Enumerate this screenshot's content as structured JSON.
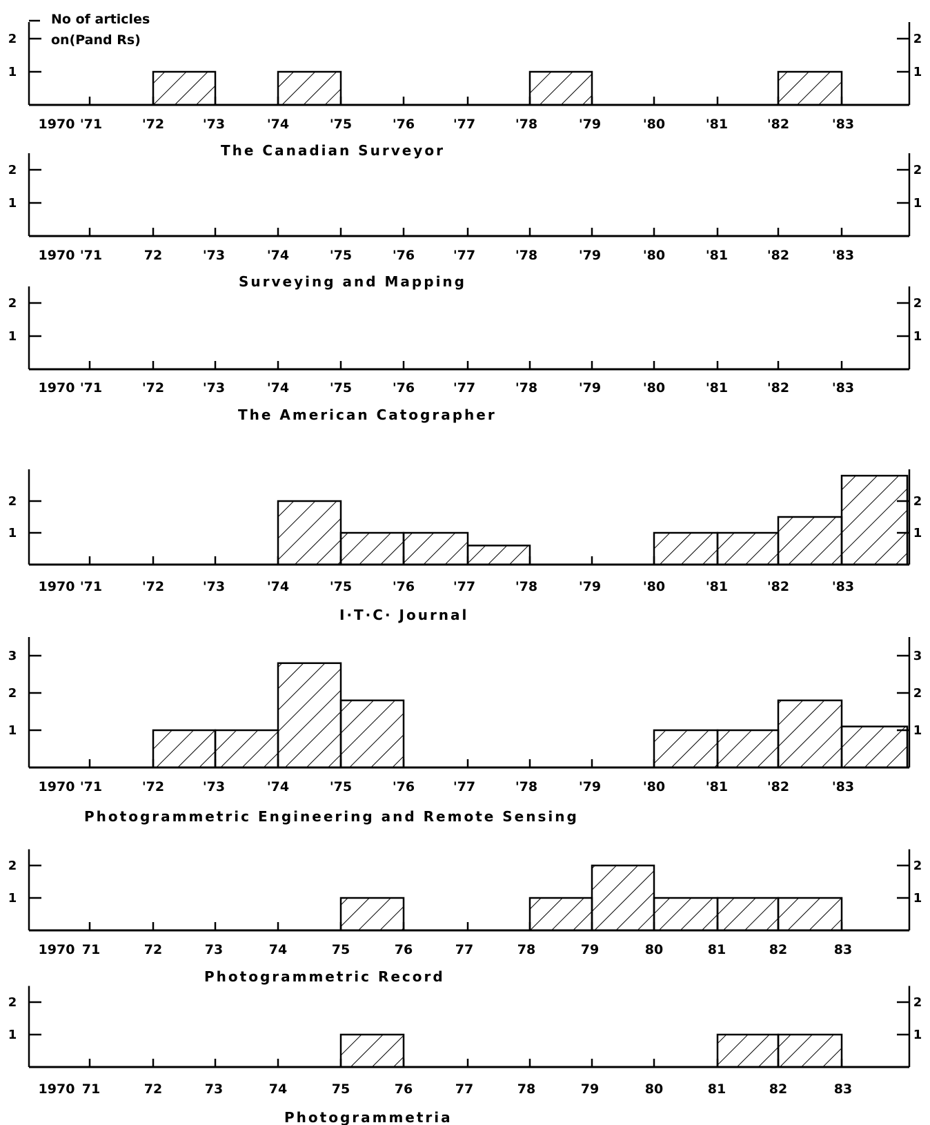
{
  "chart_data": [
    {
      "type": "bar",
      "title": "The Canadian Surveyor",
      "ylabel": "No of articles on(Pand Rs)",
      "categories": [
        "1970",
        "'71",
        "'72",
        "'73",
        "'74",
        "'75",
        "'76",
        "'77",
        "'78",
        "'79",
        "'80",
        "'81",
        "'82",
        "'83"
      ],
      "values": [
        0,
        0,
        1,
        0,
        1,
        0,
        0,
        0,
        1,
        0,
        0,
        0,
        1,
        0
      ],
      "yticks": [
        "1",
        "2"
      ],
      "ylim": [
        0,
        2.5
      ],
      "fill": "diagonal hatch"
    },
    {
      "type": "bar",
      "title": "Surveying and Mapping",
      "categories": [
        "1970",
        "'71",
        "72",
        "'73",
        "'74",
        "'75",
        "'76",
        "'77",
        "'78",
        "'79",
        "'80",
        "'81",
        "'82",
        "'83"
      ],
      "values": [
        0,
        0,
        0,
        0,
        0,
        0,
        0,
        0,
        0,
        0,
        0,
        0,
        0,
        0
      ],
      "yticks": [
        "1",
        "2"
      ],
      "ylim": [
        0,
        2.5
      ],
      "fill": "diagonal hatch"
    },
    {
      "type": "bar",
      "title": "The American Catographer",
      "categories": [
        "1970",
        "'71",
        "'72",
        "'73",
        "'74",
        "'75",
        "'76",
        "'77",
        "'78",
        "'79",
        "'80",
        "'81",
        "'82",
        "'83"
      ],
      "values": [
        0,
        0,
        0,
        0,
        0,
        0,
        0,
        0,
        0,
        0,
        0,
        0,
        0,
        0
      ],
      "yticks": [
        "1",
        "2"
      ],
      "ylim": [
        0,
        2.5
      ],
      "fill": "diagonal hatch"
    },
    {
      "type": "bar",
      "title": "I·T·C· Journal",
      "categories": [
        "1970",
        "'71",
        "'72",
        "'73",
        "'74",
        "'75",
        "'76",
        "'77",
        "'78",
        "'79",
        "'80",
        "'81",
        "'82",
        "'83"
      ],
      "values": [
        0,
        0,
        0,
        0,
        2,
        1,
        1,
        0.6,
        0,
        0,
        1,
        1,
        1.5,
        2.8
      ],
      "yticks": [
        "1",
        "2"
      ],
      "ylim": [
        0,
        3
      ],
      "fill": "diagonal hatch"
    },
    {
      "type": "bar",
      "title": "Photogrammetric Engineering and Remote Sensing",
      "categories": [
        "1970",
        "'71",
        "'72",
        "'73",
        "'74",
        "'75",
        "'76",
        "'77",
        "'78",
        "'79",
        "'80",
        "'81",
        "'82",
        "'83"
      ],
      "values": [
        0,
        0,
        1,
        1,
        2.8,
        1.8,
        0,
        0,
        0,
        0,
        1,
        1,
        1.8,
        1.1
      ],
      "yticks": [
        "1",
        "2",
        "3"
      ],
      "ylim": [
        0,
        3.5
      ],
      "fill": "diagonal hatch"
    },
    {
      "type": "bar",
      "title": "Photogrammetric Record",
      "categories": [
        "1970",
        "71",
        "72",
        "73",
        "74",
        "75",
        "76",
        "77",
        "78",
        "79",
        "80",
        "81",
        "82",
        "83"
      ],
      "values": [
        0,
        0,
        0,
        0,
        0,
        1,
        0,
        0,
        1,
        2,
        1,
        1,
        1,
        0
      ],
      "yticks": [
        "1",
        "2"
      ],
      "ylim": [
        0,
        2.5
      ],
      "fill": "diagonal hatch"
    },
    {
      "type": "bar",
      "title": "Photogrammetria",
      "categories": [
        "1970",
        "71",
        "72",
        "73",
        "74",
        "75",
        "76",
        "77",
        "78",
        "79",
        "80",
        "81",
        "82",
        "83"
      ],
      "values": [
        0,
        0,
        0,
        0,
        0,
        1,
        0,
        0,
        0,
        0,
        0,
        1,
        1,
        0
      ],
      "yticks": [
        "1",
        "2"
      ],
      "ylim": [
        0,
        2.5
      ],
      "fill": "diagonal hatch"
    }
  ]
}
